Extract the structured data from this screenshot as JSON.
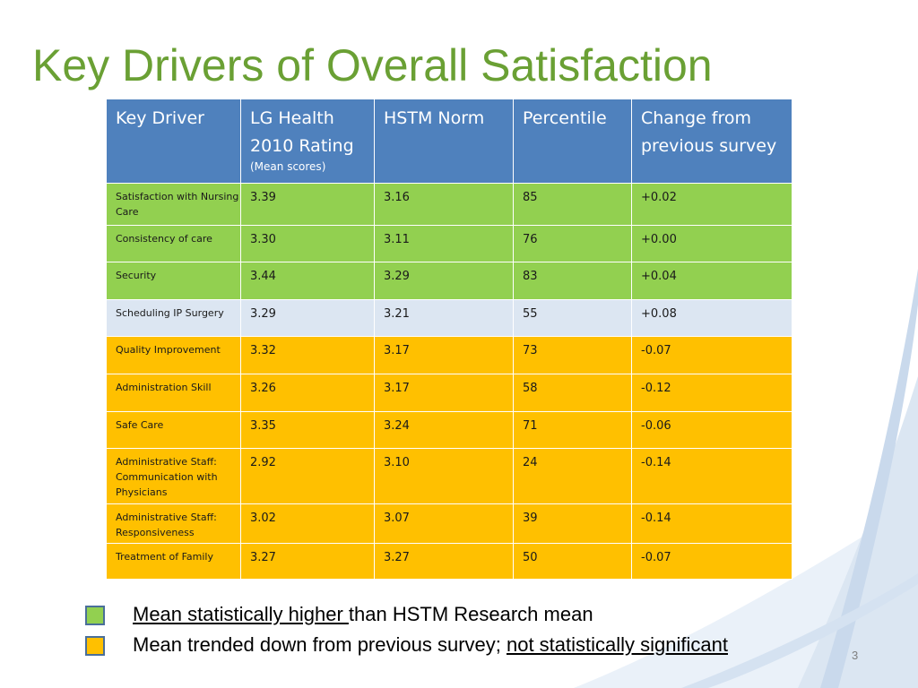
{
  "slide": {
    "title": "Key Drivers of Overall Satisfaction",
    "page_number": "3"
  },
  "table": {
    "headers": {
      "key_driver": "Key Driver",
      "rating": "LG Health 2010 Rating",
      "rating_note": "(Mean scores)",
      "norm": "HSTM Norm",
      "percentile": "Percentile",
      "change": "Change from previous survey"
    },
    "rows": [
      {
        "driver": "Satisfaction with Nursing Care",
        "rating": "3.39",
        "norm": "3.16",
        "percentile": "85",
        "change": "+0.02",
        "status": "green"
      },
      {
        "driver": "Consistency of care",
        "rating": "3.30",
        "norm": "3.11",
        "percentile": "76",
        "change": "+0.00",
        "status": "green"
      },
      {
        "driver": "Security",
        "rating": "3.44",
        "norm": "3.29",
        "percentile": "83",
        "change": "+0.04",
        "status": "green"
      },
      {
        "driver": "Scheduling IP Surgery",
        "rating": "3.29",
        "norm": "3.21",
        "percentile": "55",
        "change": "+0.08",
        "status": "neutral"
      },
      {
        "driver": "Quality Improvement",
        "rating": "3.32",
        "norm": "3.17",
        "percentile": "73",
        "change": "-0.07",
        "status": "yellow"
      },
      {
        "driver": "Administration Skill",
        "rating": "3.26",
        "norm": "3.17",
        "percentile": "58",
        "change": "-0.12",
        "status": "yellow"
      },
      {
        "driver": "Safe Care",
        "rating": "3.35",
        "norm": "3.24",
        "percentile": "71",
        "change": "-0.06",
        "status": "yellow"
      },
      {
        "driver": "Administrative Staff: Communication with Physicians",
        "rating": "2.92",
        "norm": "3.10",
        "percentile": "24",
        "change": "-0.14",
        "status": "yellow"
      },
      {
        "driver": "Administrative Staff: Responsiveness",
        "rating": "3.02",
        "norm": "3.07",
        "percentile": "39",
        "change": "-0.14",
        "status": "yellow"
      },
      {
        "driver": "Treatment of Family",
        "rating": "3.27",
        "norm": "3.27",
        "percentile": "50",
        "change": "-0.07",
        "status": "yellow"
      }
    ]
  },
  "legend": {
    "green": {
      "color": "#92d050",
      "underlined": "Mean statistically higher ",
      "text": "than HSTM Research mean"
    },
    "yellow": {
      "color": "#ffc000",
      "text": "Mean trended down from previous survey; ",
      "underlined": "not statistically significant"
    }
  },
  "colors": {
    "title": "#6aa034",
    "header": "#4f81bd",
    "green": "#92d050",
    "neutral": "#dce6f2",
    "yellow": "#ffc000"
  }
}
